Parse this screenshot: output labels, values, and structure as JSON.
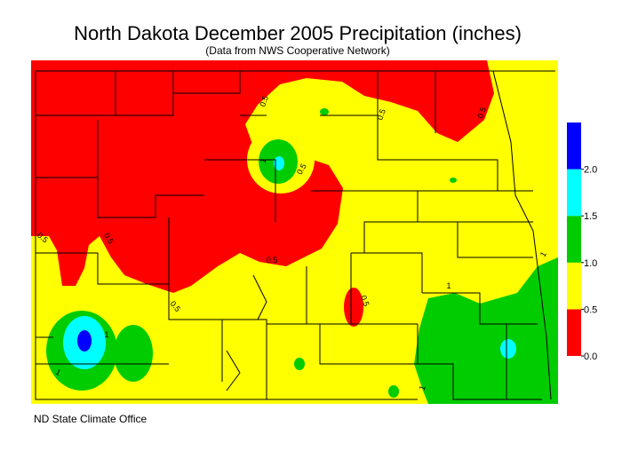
{
  "header": {
    "title": "North Dakota December 2005 Precipitation (inches)",
    "subtitle": "(Data from NWS Cooperative Network)"
  },
  "legend": {
    "range": [
      0,
      2.5
    ],
    "colors": [
      "#ff0000",
      "#ffff00",
      "#00cc00",
      "#00ffff",
      "#0000ff"
    ],
    "ticks": [
      {
        "value": 0,
        "label": "0.0"
      },
      {
        "value": 0.5,
        "label": "0.5"
      },
      {
        "value": 1,
        "label": "1.0"
      },
      {
        "value": 1.5,
        "label": "1.5"
      },
      {
        "value": 2,
        "label": "2.0"
      }
    ]
  },
  "contour_labels": [
    "0.5",
    "0.5",
    "0.5",
    "1",
    "0.5",
    "0.5",
    "0.5",
    "0.5",
    "0.5",
    "0.5",
    "1",
    "1",
    "1",
    "1",
    "1"
  ],
  "footer": "ND State Climate Office"
}
